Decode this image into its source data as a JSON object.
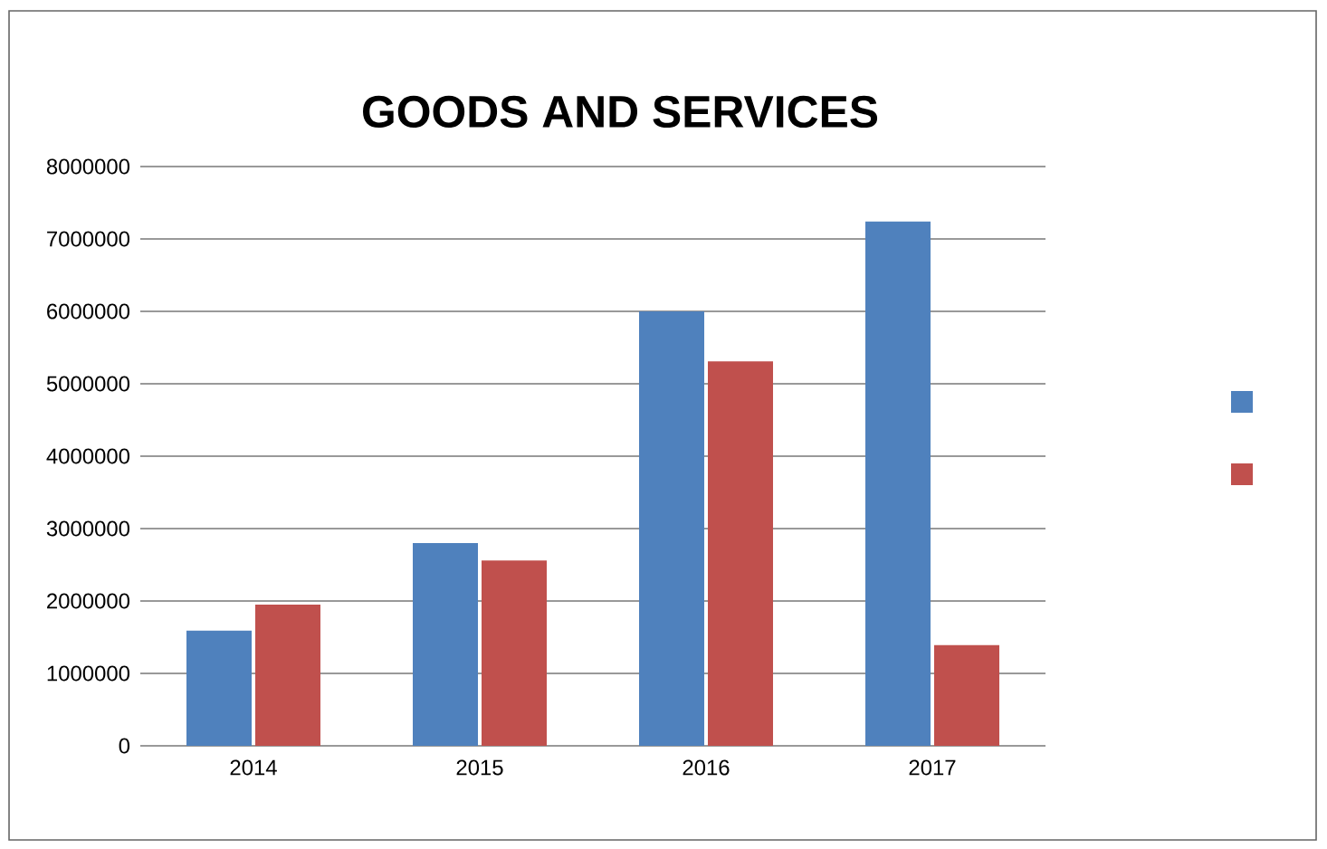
{
  "chart_data": {
    "type": "bar",
    "title": "GOODS AND SERVICES",
    "categories": [
      "2014",
      "2015",
      "2016",
      "2017"
    ],
    "series": [
      {
        "color": "#4f81bd",
        "values": [
          1590000,
          2800000,
          6000000,
          7240000
        ]
      },
      {
        "color": "#c0504d",
        "values": [
          1950000,
          2560000,
          5310000,
          1390000
        ]
      }
    ],
    "ylim": [
      0,
      8000000
    ],
    "yticks": [
      0,
      1000000,
      2000000,
      3000000,
      4000000,
      5000000,
      6000000,
      7000000,
      8000000
    ],
    "grid": "y"
  }
}
